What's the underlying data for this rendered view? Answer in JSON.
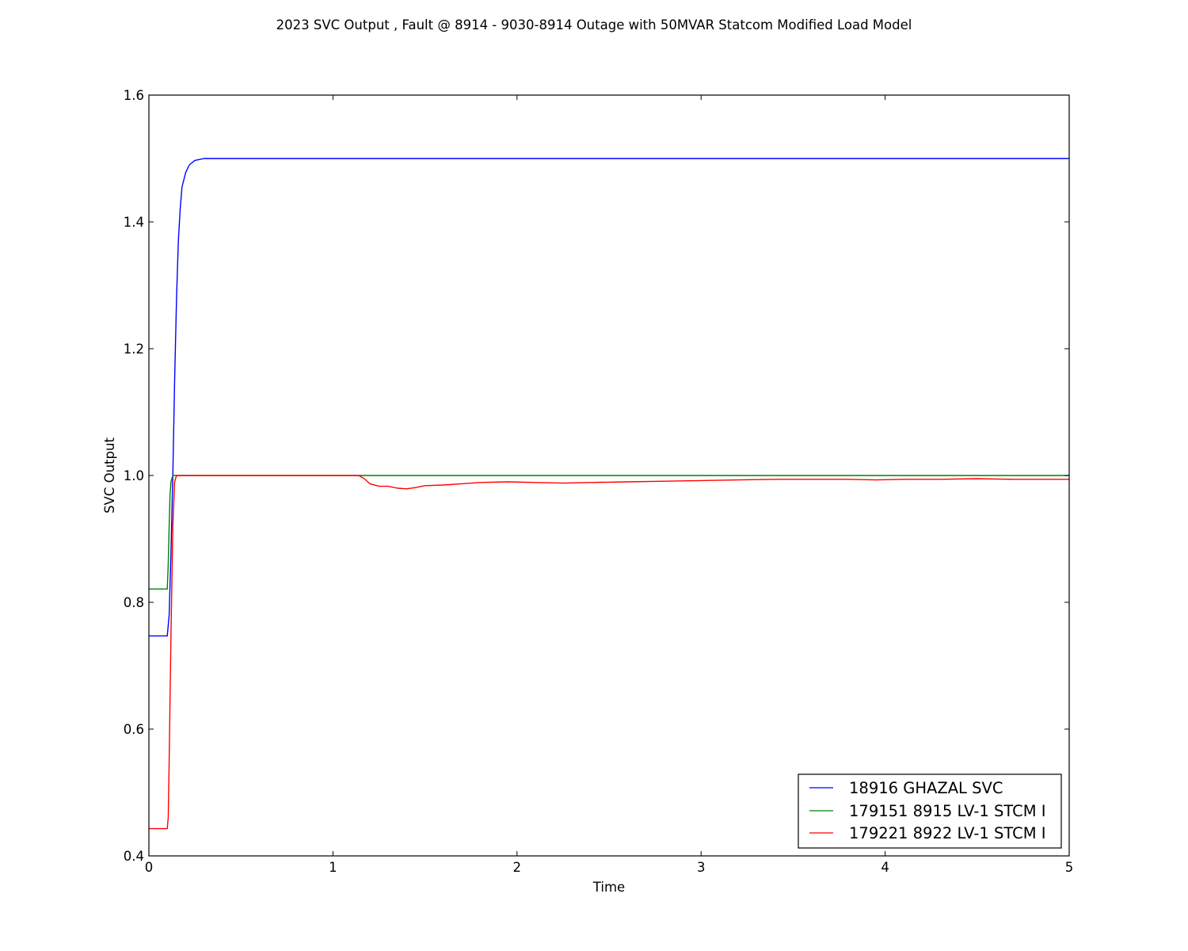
{
  "chart_data": {
    "type": "line",
    "title": "2023 SVC Output , Fault @ 8914 - 9030-8914 Outage with 50MVAR Statcom Modified Load Model",
    "xlabel": "Time",
    "ylabel": "SVC Output",
    "xlim": [
      0,
      5
    ],
    "ylim": [
      0.4,
      1.6
    ],
    "xticks": [
      "0",
      "1",
      "2",
      "3",
      "4",
      "5"
    ],
    "yticks": [
      "0.4",
      "0.6",
      "0.8",
      "1.0",
      "1.2",
      "1.4",
      "1.6"
    ],
    "grid": false,
    "legend_position": "lower-right",
    "series": [
      {
        "name": "18916 GHAZAL SVC",
        "color": "#0000ff",
        "points": [
          [
            0,
            0.747
          ],
          [
            0.1,
            0.747
          ],
          [
            0.11,
            0.78
          ],
          [
            0.12,
            0.88
          ],
          [
            0.13,
            1.0
          ],
          [
            0.14,
            1.15
          ],
          [
            0.15,
            1.28
          ],
          [
            0.16,
            1.37
          ],
          [
            0.17,
            1.42
          ],
          [
            0.18,
            1.455
          ],
          [
            0.2,
            1.478
          ],
          [
            0.22,
            1.49
          ],
          [
            0.25,
            1.497
          ],
          [
            0.3,
            1.5
          ],
          [
            5,
            1.5
          ]
        ]
      },
      {
        "name": "179151 8915 LV-1 STCM I",
        "color": "#008000",
        "points": [
          [
            0,
            0.821
          ],
          [
            0.1,
            0.821
          ],
          [
            0.105,
            0.86
          ],
          [
            0.11,
            0.92
          ],
          [
            0.115,
            0.97
          ],
          [
            0.12,
            0.99
          ],
          [
            0.13,
            1.0
          ],
          [
            5,
            1.0
          ]
        ]
      },
      {
        "name": "179221 8922 LV-1 STCM I",
        "color": "#ff0000",
        "points": [
          [
            0,
            0.443
          ],
          [
            0.1,
            0.443
          ],
          [
            0.105,
            0.46
          ],
          [
            0.11,
            0.55
          ],
          [
            0.12,
            0.75
          ],
          [
            0.13,
            0.92
          ],
          [
            0.14,
            0.99
          ],
          [
            0.15,
            1.0
          ],
          [
            1.14,
            1.0
          ],
          [
            1.17,
            0.995
          ],
          [
            1.2,
            0.987
          ],
          [
            1.25,
            0.983
          ],
          [
            1.3,
            0.983
          ],
          [
            1.35,
            0.98
          ],
          [
            1.4,
            0.979
          ],
          [
            1.45,
            0.981
          ],
          [
            1.5,
            0.984
          ],
          [
            1.6,
            0.985
          ],
          [
            1.7,
            0.987
          ],
          [
            1.8,
            0.989
          ],
          [
            1.95,
            0.99
          ],
          [
            2.1,
            0.989
          ],
          [
            2.25,
            0.988
          ],
          [
            2.4,
            0.989
          ],
          [
            2.6,
            0.99
          ],
          [
            2.8,
            0.991
          ],
          [
            3.0,
            0.992
          ],
          [
            3.2,
            0.993
          ],
          [
            3.4,
            0.994
          ],
          [
            3.6,
            0.994
          ],
          [
            3.8,
            0.994
          ],
          [
            3.95,
            0.993
          ],
          [
            4.1,
            0.994
          ],
          [
            4.3,
            0.994
          ],
          [
            4.5,
            0.995
          ],
          [
            4.7,
            0.994
          ],
          [
            5.0,
            0.994
          ]
        ]
      }
    ]
  }
}
